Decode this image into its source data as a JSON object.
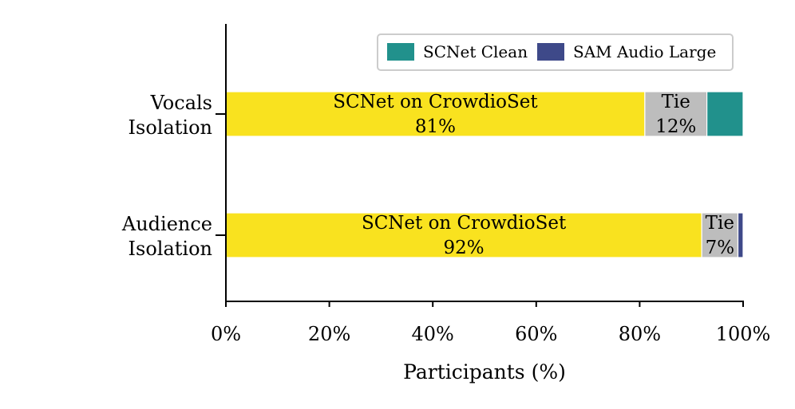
{
  "chart_data": {
    "type": "bar",
    "orientation": "horizontal",
    "stacked": true,
    "title": "",
    "xlabel": "Participants (%)",
    "ylabel": "",
    "xlim": [
      0,
      100
    ],
    "xticks": [
      0,
      20,
      40,
      60,
      80,
      100
    ],
    "tick_format": "{v}%",
    "categories": [
      {
        "lines": [
          "Vocals",
          "Isolation"
        ]
      },
      {
        "lines": [
          "Audience",
          "Isolation"
        ]
      }
    ],
    "series": [
      {
        "key": "crowdio",
        "color": "#f9e21f",
        "values": [
          81,
          92
        ],
        "labels": [
          [
            "SCNet on CrowdioSet",
            "81%"
          ],
          [
            "SCNet on CrowdioSet",
            "92%"
          ]
        ]
      },
      {
        "key": "tie",
        "color": "#bdbdbd",
        "values": [
          12,
          7
        ],
        "labels": [
          [
            "Tie",
            "12%"
          ],
          [
            "Tie",
            "7%"
          ]
        ]
      },
      {
        "key": "clean",
        "name": "SCNet Clean",
        "color": "#21918c",
        "values": [
          7,
          0
        ],
        "labels": [
          null,
          null
        ]
      },
      {
        "key": "sam",
        "name": "SAM Audio Large",
        "color": "#3e4989",
        "values": [
          0,
          1
        ],
        "labels": [
          null,
          null
        ]
      }
    ],
    "legend": {
      "position": "top-right",
      "entries": [
        "SCNet Clean",
        "SAM Audio Large"
      ]
    },
    "grid": false
  }
}
